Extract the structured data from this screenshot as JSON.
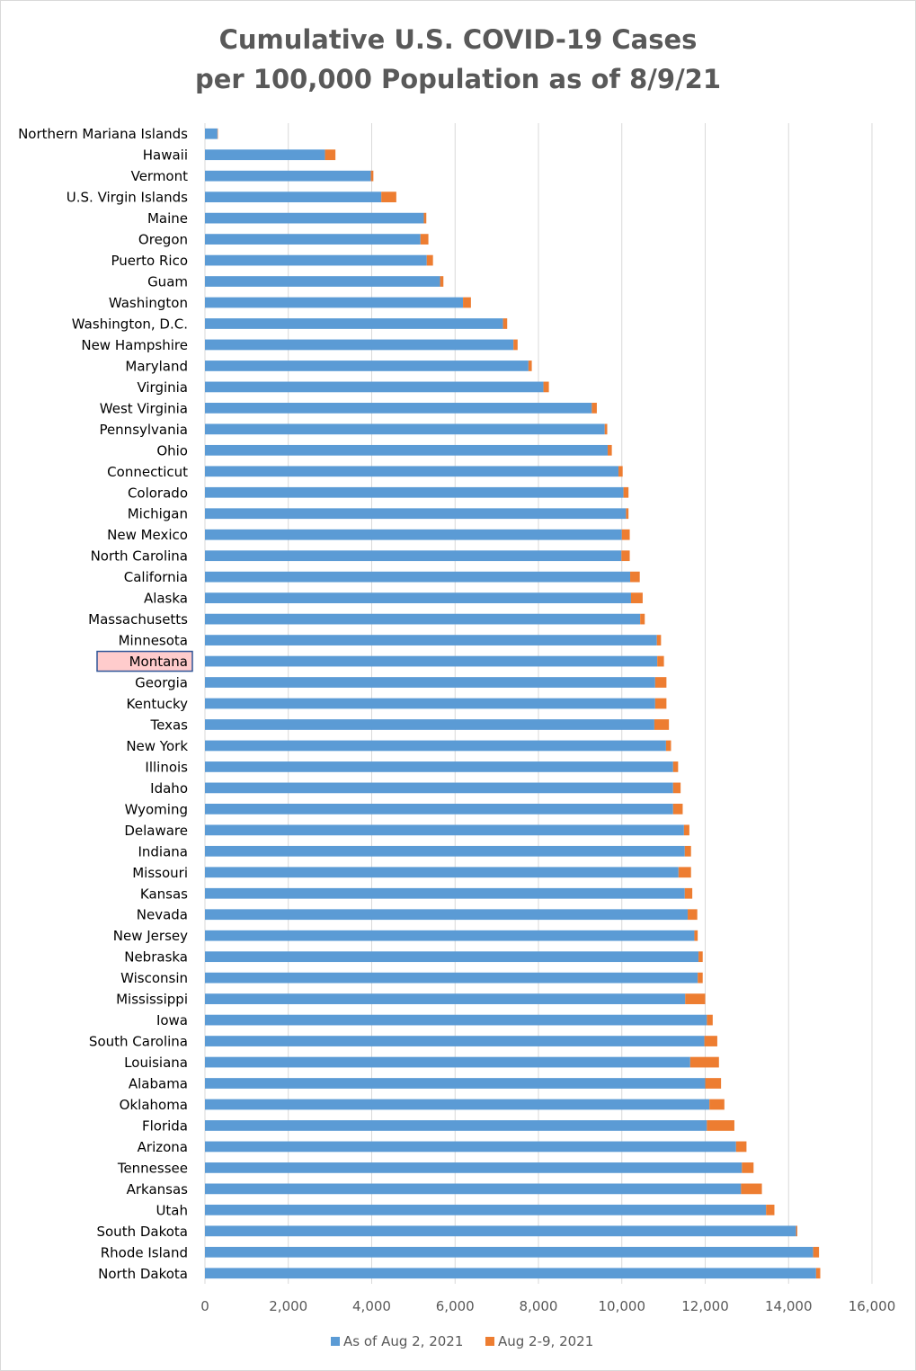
{
  "chart_data": {
    "type": "bar",
    "orientation": "horizontal",
    "stacked": true,
    "title": [
      "Cumulative U.S. COVID-19 Cases",
      "per 100,000 Population as of 8/9/21"
    ],
    "xlabel": "",
    "ylabel": "",
    "xlim": [
      0,
      16000
    ],
    "xticks": [
      0,
      2000,
      4000,
      6000,
      8000,
      10000,
      12000,
      14000,
      16000
    ],
    "xtick_labels": [
      "0",
      "2,000",
      "4,000",
      "6,000",
      "8,000",
      "10,000",
      "12,000",
      "14,000",
      "16,000"
    ],
    "grid": "vertical",
    "legend_position": "bottom",
    "highlighted_category": "Montana",
    "highlight_fill": "#ffcccc",
    "highlight_border": "#2f5597",
    "categories": [
      "Northern Mariana Islands",
      "Hawaii",
      "Vermont",
      "U.S. Virgin Islands",
      "Maine",
      "Oregon",
      "Puerto Rico",
      "Guam",
      "Washington",
      "Washington, D.C.",
      "New Hampshire",
      "Maryland",
      "Virginia",
      "West Virginia",
      "Pennsylvania",
      "Ohio",
      "Connecticut",
      "Colorado",
      "Michigan",
      "New Mexico",
      "North Carolina",
      "California",
      "Alaska",
      "Massachusetts",
      "Minnesota",
      "Montana",
      "Georgia",
      "Kentucky",
      "Texas",
      "New York",
      "Illinois",
      "Idaho",
      "Wyoming",
      "Delaware",
      "Indiana",
      "Missouri",
      "Kansas",
      "Nevada",
      "New Jersey",
      "Nebraska",
      "Wisconsin",
      "Mississippi",
      "Iowa",
      "South Carolina",
      "Louisiana",
      "Alabama",
      "Oklahoma",
      "Florida",
      "Arizona",
      "Tennessee",
      "Arkansas",
      "Utah",
      "South Dakota",
      "Rhode Island",
      "North Dakota"
    ],
    "series": [
      {
        "name": "As of Aug 2, 2021",
        "color": "#5b9bd5",
        "values": [
          300,
          2880,
          3980,
          4230,
          5250,
          5170,
          5320,
          5640,
          6190,
          7150,
          7400,
          7760,
          8120,
          9280,
          9590,
          9660,
          9920,
          10040,
          10100,
          10000,
          9990,
          10200,
          10220,
          10440,
          10840,
          10850,
          10800,
          10800,
          10780,
          11060,
          11230,
          11230,
          11230,
          11490,
          11510,
          11360,
          11510,
          11580,
          11740,
          11840,
          11820,
          11520,
          12040,
          11980,
          11640,
          12000,
          12100,
          12040,
          12740,
          12880,
          12860,
          13460,
          14180,
          14590,
          14660
        ]
      },
      {
        "name": "Aug 2-9, 2021",
        "color": "#ed7d31",
        "values": [
          10,
          250,
          60,
          360,
          60,
          190,
          150,
          80,
          190,
          100,
          100,
          80,
          130,
          120,
          60,
          100,
          100,
          120,
          60,
          190,
          200,
          230,
          280,
          110,
          100,
          160,
          270,
          270,
          350,
          120,
          120,
          180,
          230,
          130,
          150,
          300,
          180,
          230,
          80,
          100,
          120,
          480,
          140,
          310,
          690,
          380,
          360,
          660,
          250,
          280,
          500,
          200,
          30,
          140,
          100
        ]
      }
    ]
  }
}
